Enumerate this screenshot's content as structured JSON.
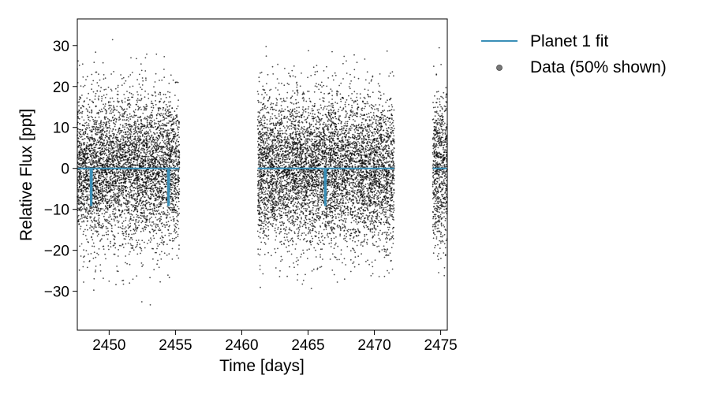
{
  "chart_data": {
    "type": "scatter",
    "xlabel": "Time [days]",
    "ylabel": "Relative Flux [ppt]",
    "xlim": [
      2447.6,
      2475.5
    ],
    "ylim": [
      -39.5,
      36.5
    ],
    "xticks": [
      2450,
      2455,
      2460,
      2465,
      2470,
      2475
    ],
    "yticks": [
      -30,
      -20,
      -10,
      0,
      10,
      20,
      30
    ],
    "grid": false,
    "legend_position": "outside-top-right",
    "series": [
      {
        "name": "Planet 1 fit",
        "kind": "line",
        "color": "#3a8fb7",
        "baseline": 0,
        "segments": [
          [
            2447.6,
            2455.3
          ],
          [
            2461.2,
            2471.5
          ],
          [
            2474.4,
            2475.5
          ]
        ],
        "transits": [
          {
            "t": 2448.65,
            "depth": -9
          },
          {
            "t": 2454.48,
            "depth": -9
          },
          {
            "t": 2466.3,
            "depth": -9
          }
        ]
      },
      {
        "name": "Data (50% shown)",
        "kind": "scatter",
        "color": "#000000",
        "segments": [
          [
            2447.6,
            2455.3
          ],
          [
            2461.2,
            2471.5
          ],
          [
            2474.4,
            2475.5
          ]
        ],
        "typical_scatter_ppt": 9,
        "range_ppt": [
          -36,
          33
        ]
      }
    ]
  }
}
